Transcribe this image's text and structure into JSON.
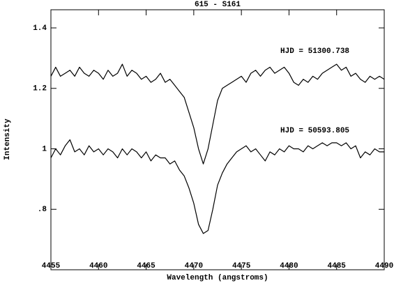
{
  "chart_data": {
    "type": "line",
    "title": "615 - S161",
    "xlabel": "Wavelength (angstroms)",
    "ylabel": "Intensity",
    "x": [
      4455,
      4455.5,
      4456,
      4456.5,
      4457,
      4457.5,
      4458,
      4458.5,
      4459,
      4459.5,
      4460,
      4460.5,
      4461,
      4461.5,
      4462,
      4462.5,
      4463,
      4463.5,
      4464,
      4464.5,
      4465,
      4465.5,
      4466,
      4466.5,
      4467,
      4467.5,
      4468,
      4468.5,
      4469,
      4469.5,
      4470,
      4470.5,
      4471,
      4471.5,
      4472,
      4472.5,
      4473,
      4473.5,
      4474,
      4474.5,
      4475,
      4475.5,
      4476,
      4476.5,
      4477,
      4477.5,
      4478,
      4478.5,
      4479,
      4479.5,
      4480,
      4480.5,
      4481,
      4481.5,
      4482,
      4482.5,
      4483,
      4483.5,
      4484,
      4484.5,
      4485,
      4485.5,
      4486,
      4486.5,
      4487,
      4487.5,
      4488,
      4488.5,
      4489,
      4489.5,
      4490
    ],
    "series": [
      {
        "name": "HJD = 51300.738",
        "color": "#000000",
        "values": [
          1.24,
          1.27,
          1.24,
          1.25,
          1.26,
          1.24,
          1.27,
          1.25,
          1.24,
          1.26,
          1.25,
          1.23,
          1.26,
          1.24,
          1.25,
          1.28,
          1.24,
          1.26,
          1.25,
          1.23,
          1.24,
          1.22,
          1.23,
          1.25,
          1.22,
          1.23,
          1.21,
          1.19,
          1.17,
          1.12,
          1.07,
          1.0,
          0.95,
          1.0,
          1.08,
          1.16,
          1.2,
          1.21,
          1.22,
          1.23,
          1.24,
          1.22,
          1.25,
          1.26,
          1.24,
          1.26,
          1.27,
          1.25,
          1.26,
          1.27,
          1.25,
          1.22,
          1.21,
          1.23,
          1.22,
          1.24,
          1.23,
          1.25,
          1.26,
          1.27,
          1.28,
          1.26,
          1.27,
          1.24,
          1.25,
          1.23,
          1.22,
          1.24,
          1.23,
          1.24,
          1.23
        ]
      },
      {
        "name": "HJD = 50593.805",
        "color": "#000000",
        "values": [
          0.97,
          1.0,
          0.98,
          1.01,
          1.03,
          0.99,
          1.0,
          0.98,
          1.01,
          0.99,
          1.0,
          0.98,
          1.0,
          0.99,
          0.97,
          1.0,
          0.98,
          1.0,
          0.99,
          0.97,
          0.99,
          0.96,
          0.98,
          0.97,
          0.97,
          0.95,
          0.96,
          0.93,
          0.91,
          0.87,
          0.82,
          0.75,
          0.72,
          0.73,
          0.8,
          0.88,
          0.92,
          0.95,
          0.97,
          0.99,
          1.0,
          1.01,
          0.99,
          1.0,
          0.98,
          0.96,
          0.99,
          0.98,
          1.0,
          0.99,
          1.01,
          1.0,
          1.0,
          0.99,
          1.01,
          1.0,
          1.01,
          1.02,
          1.01,
          1.02,
          1.02,
          1.01,
          1.02,
          1.0,
          1.01,
          0.97,
          0.99,
          0.98,
          1.0,
          0.99,
          0.99
        ]
      }
    ],
    "xlim": [
      4455,
      4490
    ],
    "xticks": [
      4455,
      4460,
      4465,
      4470,
      4475,
      4480,
      4485,
      4490
    ],
    "ylim": [
      0.6,
      1.46
    ],
    "yticks": [
      {
        "value": 0.8,
        "label": ".8"
      },
      1,
      1.2,
      1.4
    ]
  }
}
